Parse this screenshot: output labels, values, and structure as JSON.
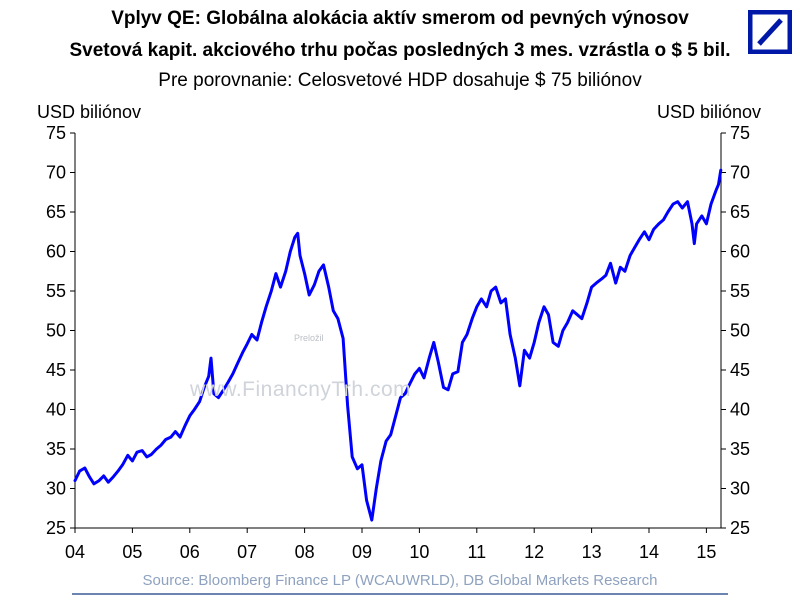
{
  "titles": {
    "line1": "Vplyv QE: Globálna alokácia aktív smerom od pevných výnosov",
    "line2": "Svetová kapit. akciového trhu počas posledných 3 mes. vzrástla o $ 5 bil.",
    "line3": "Pre porovnanie: Celosvetové HDP dosahuje $ 75 biliónov"
  },
  "unit_left": "USD  biliónov",
  "unit_right": "USD  biliónov",
  "watermark": "www.FinancnyTrh.com",
  "watermark_small": "Preložil",
  "source": "Source: Bloomberg Finance LP (WCAUWRLD), DB Global Markets Research",
  "logo": {
    "icon": "deutsche-bank-slash-logo",
    "color": "#0018a8"
  },
  "colors": {
    "line": "#0000ff",
    "source_text": "#8ea2bf",
    "rule": "#6c85b0"
  },
  "chart_data": {
    "type": "line",
    "title": "",
    "xlabel": "",
    "ylabel": "USD biliónov",
    "ylim": [
      25,
      75
    ],
    "y_ticks": [
      "25",
      "30",
      "35",
      "40",
      "45",
      "50",
      "55",
      "60",
      "65",
      "70",
      "75"
    ],
    "x_tick_labels": [
      "04",
      "05",
      "06",
      "07",
      "08",
      "09",
      "10",
      "11",
      "12",
      "13",
      "14",
      "15"
    ],
    "x_range": [
      2004.0,
      2015.25
    ],
    "grid": false,
    "dual_axis_mirrored": true,
    "series": [
      {
        "name": "",
        "points": [
          [
            2004.0,
            31.0
          ],
          [
            2004.08,
            32.2
          ],
          [
            2004.17,
            32.6
          ],
          [
            2004.25,
            31.5
          ],
          [
            2004.33,
            30.6
          ],
          [
            2004.42,
            31.0
          ],
          [
            2004.5,
            31.6
          ],
          [
            2004.58,
            30.8
          ],
          [
            2004.67,
            31.5
          ],
          [
            2004.75,
            32.2
          ],
          [
            2004.83,
            33.0
          ],
          [
            2004.92,
            34.2
          ],
          [
            2005.0,
            33.5
          ],
          [
            2005.08,
            34.6
          ],
          [
            2005.17,
            34.8
          ],
          [
            2005.25,
            34.0
          ],
          [
            2005.33,
            34.3
          ],
          [
            2005.42,
            35.0
          ],
          [
            2005.5,
            35.5
          ],
          [
            2005.58,
            36.2
          ],
          [
            2005.67,
            36.5
          ],
          [
            2005.75,
            37.2
          ],
          [
            2005.83,
            36.5
          ],
          [
            2005.92,
            38.0
          ],
          [
            2006.0,
            39.2
          ],
          [
            2006.08,
            40.0
          ],
          [
            2006.17,
            41.0
          ],
          [
            2006.25,
            42.8
          ],
          [
            2006.33,
            44.2
          ],
          [
            2006.37,
            46.5
          ],
          [
            2006.42,
            42.0
          ],
          [
            2006.5,
            41.5
          ],
          [
            2006.58,
            42.4
          ],
          [
            2006.67,
            43.5
          ],
          [
            2006.75,
            44.5
          ],
          [
            2006.83,
            45.8
          ],
          [
            2006.92,
            47.2
          ],
          [
            2007.0,
            48.3
          ],
          [
            2007.08,
            49.5
          ],
          [
            2007.17,
            48.8
          ],
          [
            2007.25,
            51.0
          ],
          [
            2007.33,
            53.0
          ],
          [
            2007.42,
            55.0
          ],
          [
            2007.5,
            57.2
          ],
          [
            2007.58,
            55.5
          ],
          [
            2007.67,
            57.5
          ],
          [
            2007.75,
            60.0
          ],
          [
            2007.83,
            61.8
          ],
          [
            2007.88,
            62.3
          ],
          [
            2007.92,
            59.5
          ],
          [
            2008.0,
            57.2
          ],
          [
            2008.08,
            54.5
          ],
          [
            2008.17,
            55.8
          ],
          [
            2008.25,
            57.5
          ],
          [
            2008.33,
            58.3
          ],
          [
            2008.42,
            55.5
          ],
          [
            2008.5,
            52.5
          ],
          [
            2008.58,
            51.5
          ],
          [
            2008.67,
            49.0
          ],
          [
            2008.75,
            40.5
          ],
          [
            2008.83,
            34.0
          ],
          [
            2008.92,
            32.5
          ],
          [
            2009.0,
            33.0
          ],
          [
            2009.08,
            28.5
          ],
          [
            2009.17,
            26.0
          ],
          [
            2009.25,
            30.0
          ],
          [
            2009.33,
            33.5
          ],
          [
            2009.42,
            36.0
          ],
          [
            2009.5,
            36.8
          ],
          [
            2009.58,
            39.0
          ],
          [
            2009.67,
            41.5
          ],
          [
            2009.75,
            42.0
          ],
          [
            2009.83,
            43.2
          ],
          [
            2009.92,
            44.5
          ],
          [
            2010.0,
            45.2
          ],
          [
            2010.08,
            44.0
          ],
          [
            2010.17,
            46.5
          ],
          [
            2010.25,
            48.5
          ],
          [
            2010.33,
            46.0
          ],
          [
            2010.42,
            42.8
          ],
          [
            2010.5,
            42.5
          ],
          [
            2010.58,
            44.5
          ],
          [
            2010.67,
            44.8
          ],
          [
            2010.75,
            48.5
          ],
          [
            2010.83,
            49.5
          ],
          [
            2010.92,
            51.5
          ],
          [
            2011.0,
            53.0
          ],
          [
            2011.08,
            54.0
          ],
          [
            2011.17,
            53.0
          ],
          [
            2011.25,
            55.0
          ],
          [
            2011.33,
            55.5
          ],
          [
            2011.42,
            53.5
          ],
          [
            2011.5,
            54.0
          ],
          [
            2011.58,
            49.5
          ],
          [
            2011.67,
            46.5
          ],
          [
            2011.75,
            43.0
          ],
          [
            2011.83,
            47.5
          ],
          [
            2011.92,
            46.5
          ],
          [
            2012.0,
            48.5
          ],
          [
            2012.08,
            51.0
          ],
          [
            2012.17,
            53.0
          ],
          [
            2012.25,
            52.0
          ],
          [
            2012.33,
            48.5
          ],
          [
            2012.42,
            48.0
          ],
          [
            2012.5,
            50.0
          ],
          [
            2012.58,
            51.0
          ],
          [
            2012.67,
            52.5
          ],
          [
            2012.75,
            52.0
          ],
          [
            2012.83,
            51.5
          ],
          [
            2012.92,
            53.5
          ],
          [
            2013.0,
            55.5
          ],
          [
            2013.08,
            56.0
          ],
          [
            2013.17,
            56.5
          ],
          [
            2013.25,
            57.0
          ],
          [
            2013.33,
            58.5
          ],
          [
            2013.42,
            56.0
          ],
          [
            2013.5,
            58.0
          ],
          [
            2013.58,
            57.5
          ],
          [
            2013.67,
            59.5
          ],
          [
            2013.75,
            60.5
          ],
          [
            2013.83,
            61.5
          ],
          [
            2013.92,
            62.5
          ],
          [
            2014.0,
            61.5
          ],
          [
            2014.08,
            62.8
          ],
          [
            2014.17,
            63.5
          ],
          [
            2014.25,
            64.0
          ],
          [
            2014.33,
            65.0
          ],
          [
            2014.42,
            66.0
          ],
          [
            2014.5,
            66.3
          ],
          [
            2014.58,
            65.5
          ],
          [
            2014.67,
            66.3
          ],
          [
            2014.75,
            63.5
          ],
          [
            2014.79,
            61.0
          ],
          [
            2014.83,
            63.5
          ],
          [
            2014.92,
            64.5
          ],
          [
            2015.0,
            63.5
          ],
          [
            2015.08,
            66.0
          ],
          [
            2015.17,
            67.8
          ],
          [
            2015.21,
            68.5
          ],
          [
            2015.25,
            70.3
          ]
        ]
      }
    ]
  }
}
